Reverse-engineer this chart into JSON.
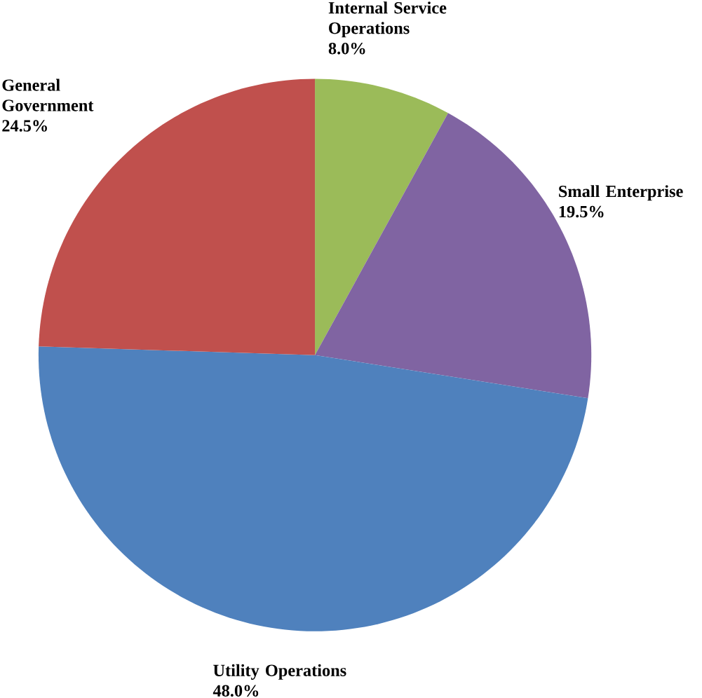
{
  "chart_data": {
    "type": "pie",
    "categories": [
      "Internal Service Operations",
      "Small Enterprise",
      "Utility Operations",
      "General Government"
    ],
    "values": [
      8.0,
      19.5,
      48.0,
      24.5
    ],
    "value_labels": [
      "8.0%",
      "19.5%",
      "48.0%",
      "24.5%"
    ],
    "colors": [
      "#9bbb59",
      "#8064a2",
      "#4f81bd",
      "#c0504d"
    ]
  }
}
